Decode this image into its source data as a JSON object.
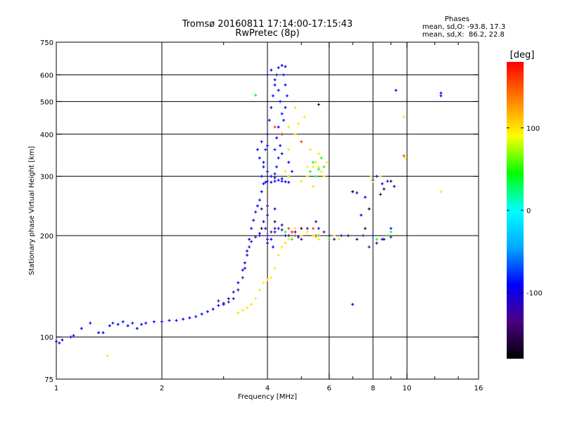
{
  "title": {
    "line1": "Tromsø 20160811 17:14:00-17:15:43",
    "line2": "RwPretec (8p)"
  },
  "stats": {
    "heading": "Phases",
    "o_line": "mean, sd,O: -93.8, 17.3",
    "x_line": "mean, sd,X:  86.2, 22.8"
  },
  "chart_data": {
    "type": "scatter",
    "xlabel": "Frequency [MHz]",
    "ylabel": "Stationary phase Virtual Height [km]",
    "x_scale": "log",
    "y_scale": "log",
    "xlim": [
      1,
      16
    ],
    "ylim": [
      75,
      750
    ],
    "x_ticks": [
      1,
      2,
      4,
      6,
      8,
      10,
      16
    ],
    "x_tick_labels": [
      "1",
      "2",
      "4",
      "6",
      "8",
      "10",
      "16"
    ],
    "x_minor_ticks": [
      3,
      5,
      7,
      9,
      12,
      14
    ],
    "x_grid": [
      2,
      4,
      6,
      8,
      10
    ],
    "y_ticks": [
      75,
      100,
      200,
      300,
      400,
      500,
      600,
      750
    ],
    "y_tick_labels": [
      "75",
      "100",
      "200",
      "300",
      "400",
      "500",
      "600",
      "750"
    ],
    "y_grid": [
      100,
      200,
      300,
      400,
      500,
      600
    ],
    "grid": true,
    "colorbar": {
      "label": "[deg]",
      "min": -180,
      "max": 180,
      "ticks": [
        100,
        0,
        -100
      ],
      "tick_labels": [
        "100",
        "0",
        "-100"
      ],
      "colors": [
        "#000000",
        "#4b0082",
        "#0000ff",
        "#00aaff",
        "#00ffff",
        "#00ff00",
        "#ffff00",
        "#ff8000",
        "#ff0000"
      ]
    },
    "series": [
      {
        "phase": -90,
        "points": [
          [
            1.0,
            97
          ],
          [
            1.02,
            96
          ],
          [
            1.04,
            98
          ],
          [
            1.1,
            100
          ],
          [
            1.12,
            101
          ],
          [
            1.18,
            106
          ],
          [
            1.25,
            110
          ],
          [
            1.32,
            103
          ],
          [
            1.36,
            103
          ],
          [
            1.42,
            108
          ],
          [
            1.45,
            110
          ],
          [
            1.5,
            109
          ],
          [
            1.55,
            111
          ],
          [
            1.6,
            108
          ],
          [
            1.65,
            110
          ],
          [
            1.7,
            106
          ],
          [
            1.75,
            109
          ],
          [
            1.8,
            110
          ],
          [
            1.9,
            111
          ],
          [
            2.0,
            111
          ],
          [
            2.1,
            112
          ],
          [
            2.2,
            112
          ],
          [
            2.3,
            113
          ],
          [
            2.4,
            114
          ],
          [
            2.5,
            115
          ],
          [
            2.6,
            117
          ],
          [
            2.7,
            119
          ],
          [
            2.8,
            121
          ],
          [
            2.9,
            124
          ],
          [
            3.0,
            125
          ],
          [
            3.1,
            130
          ],
          [
            3.2,
            136
          ],
          [
            3.3,
            145
          ],
          [
            3.4,
            158
          ],
          [
            3.45,
            166
          ],
          [
            3.5,
            180
          ],
          [
            3.55,
            195
          ],
          [
            3.6,
            210
          ],
          [
            3.65,
            222
          ],
          [
            3.7,
            235
          ],
          [
            3.75,
            245
          ],
          [
            3.8,
            255
          ],
          [
            3.85,
            270
          ],
          [
            3.9,
            285
          ],
          [
            3.95,
            288
          ],
          [
            4.0,
            290
          ],
          [
            4.1,
            288
          ],
          [
            4.2,
            290
          ],
          [
            4.3,
            292
          ],
          [
            4.4,
            290
          ],
          [
            4.5,
            289
          ],
          [
            4.6,
            288
          ],
          [
            3.85,
            300
          ],
          [
            3.9,
            330
          ],
          [
            3.95,
            360
          ],
          [
            4.0,
            400
          ],
          [
            4.05,
            440
          ],
          [
            4.1,
            480
          ],
          [
            4.15,
            520
          ],
          [
            4.2,
            560
          ],
          [
            4.25,
            600
          ],
          [
            4.3,
            630
          ],
          [
            4.4,
            640
          ],
          [
            4.5,
            635
          ],
          [
            4.45,
            600
          ],
          [
            4.5,
            560
          ],
          [
            4.55,
            520
          ],
          [
            4.5,
            480
          ],
          [
            4.45,
            440
          ],
          [
            4.4,
            400
          ],
          [
            4.35,
            370
          ],
          [
            4.3,
            340
          ],
          [
            4.25,
            320
          ],
          [
            4.2,
            305
          ],
          [
            4.1,
            300
          ],
          [
            4.0,
            310
          ],
          [
            3.9,
            320
          ],
          [
            3.8,
            340
          ],
          [
            3.75,
            360
          ],
          [
            3.85,
            380
          ],
          [
            4.0,
            370
          ],
          [
            4.2,
            360
          ],
          [
            4.4,
            350
          ],
          [
            4.6,
            330
          ],
          [
            4.7,
            310
          ],
          [
            4.6,
            300
          ],
          [
            4.4,
            295
          ],
          [
            4.2,
            297
          ],
          [
            4.0,
            600
          ],
          [
            4.1,
            620
          ],
          [
            4.2,
            580
          ],
          [
            4.3,
            540
          ],
          [
            4.35,
            500
          ],
          [
            4.4,
            460
          ],
          [
            4.3,
            420
          ],
          [
            4.25,
            390
          ],
          [
            4.0,
            200
          ],
          [
            4.1,
            195
          ],
          [
            4.2,
            205
          ],
          [
            4.3,
            210
          ],
          [
            4.5,
            200
          ],
          [
            4.7,
            205
          ],
          [
            4.9,
            198
          ],
          [
            4.0,
            230
          ],
          [
            4.2,
            240
          ],
          [
            7.0,
            270
          ],
          [
            7.2,
            268
          ],
          [
            7.6,
            260
          ],
          [
            8.0,
            292
          ],
          [
            8.2,
            300
          ],
          [
            8.5,
            285
          ],
          [
            8.8,
            290
          ],
          [
            9.2,
            280
          ],
          [
            7.4,
            230
          ],
          [
            7.0,
            125
          ],
          [
            6.5,
            200
          ],
          [
            8.0,
            200
          ],
          [
            8.5,
            195
          ],
          [
            9.0,
            210
          ],
          [
            12.5,
            530
          ],
          [
            12.5,
            520
          ],
          [
            9.3,
            540
          ],
          [
            3.8,
            200
          ],
          [
            3.9,
            220
          ],
          [
            3.95,
            210
          ],
          [
            4.0,
            190
          ],
          [
            4.15,
            185
          ]
        ]
      },
      {
        "phase": -130,
        "points": [
          [
            2.9,
            128
          ],
          [
            3.0,
            126
          ],
          [
            3.1,
            127
          ],
          [
            3.2,
            130
          ],
          [
            3.3,
            138
          ],
          [
            3.4,
            150
          ],
          [
            3.45,
            160
          ],
          [
            3.5,
            175
          ],
          [
            3.55,
            185
          ],
          [
            3.6,
            192
          ],
          [
            3.7,
            198
          ],
          [
            3.8,
            203
          ],
          [
            4.0,
            195
          ],
          [
            4.1,
            205
          ],
          [
            4.2,
            210
          ],
          [
            4.4,
            208
          ],
          [
            4.6,
            200
          ],
          [
            4.8,
            205
          ],
          [
            5.0,
            195
          ],
          [
            5.2,
            210
          ],
          [
            5.5,
            220
          ],
          [
            5.8,
            205
          ],
          [
            6.0,
            200
          ],
          [
            6.2,
            195
          ],
          [
            7.2,
            195
          ],
          [
            7.5,
            200
          ],
          [
            7.8,
            185
          ],
          [
            8.2,
            190
          ],
          [
            8.8,
            200
          ],
          [
            9.0,
            198
          ],
          [
            5.4,
            200
          ],
          [
            5.6,
            210
          ],
          [
            3.85,
            240
          ],
          [
            4.0,
            245
          ]
        ]
      },
      {
        "phase": 100,
        "points": [
          [
            3.3,
            118
          ],
          [
            3.4,
            120
          ],
          [
            3.5,
            122
          ],
          [
            3.6,
            125
          ],
          [
            3.7,
            130
          ],
          [
            3.8,
            138
          ],
          [
            3.9,
            145
          ],
          [
            4.0,
            148
          ],
          [
            4.1,
            150
          ],
          [
            4.2,
            160
          ],
          [
            4.3,
            175
          ],
          [
            4.4,
            185
          ],
          [
            4.5,
            190
          ],
          [
            4.6,
            195
          ],
          [
            4.7,
            205
          ],
          [
            4.8,
            210
          ],
          [
            5.0,
            200
          ],
          [
            5.2,
            205
          ],
          [
            5.4,
            200
          ],
          [
            5.5,
            198
          ],
          [
            5.6,
            195
          ],
          [
            5.0,
            290
          ],
          [
            5.2,
            300
          ],
          [
            5.4,
            320
          ],
          [
            5.5,
            330
          ],
          [
            5.6,
            320
          ],
          [
            5.7,
            310
          ],
          [
            5.8,
            300
          ],
          [
            5.9,
            330
          ],
          [
            5.6,
            350
          ],
          [
            5.3,
            360
          ],
          [
            5.0,
            380
          ],
          [
            4.8,
            400
          ],
          [
            4.6,
            360
          ],
          [
            4.9,
            430
          ],
          [
            5.1,
            450
          ],
          [
            4.8,
            480
          ],
          [
            4.6,
            420
          ],
          [
            5.2,
            320
          ],
          [
            5.4,
            280
          ],
          [
            6.2,
            200
          ],
          [
            6.4,
            195
          ],
          [
            7.9,
            300
          ],
          [
            8.0,
            290
          ],
          [
            8.4,
            300
          ],
          [
            9.8,
            450
          ],
          [
            9.9,
            340
          ],
          [
            12.5,
            270
          ],
          [
            1.4,
            88
          ],
          [
            4.6,
            300
          ],
          [
            4.5,
            310
          ]
        ]
      },
      {
        "phase": 40,
        "points": [
          [
            5.4,
            330
          ],
          [
            5.6,
            315
          ],
          [
            5.7,
            340
          ],
          [
            5.8,
            320
          ],
          [
            5.5,
            300
          ],
          [
            5.3,
            310
          ],
          [
            8.8,
            200
          ],
          [
            9.0,
            205
          ],
          [
            8.2,
            195
          ],
          [
            3.7,
            522
          ],
          [
            5.6,
            200
          ],
          [
            4.5,
            205
          ],
          [
            4.7,
            195
          ],
          [
            6.0,
            195
          ]
        ]
      },
      {
        "phase": -160,
        "points": [
          [
            5.6,
            490
          ],
          [
            7.0,
            270
          ],
          [
            8.6,
            275
          ],
          [
            8.4,
            265
          ],
          [
            7.8,
            240
          ],
          [
            9.0,
            290
          ],
          [
            4.2,
            220
          ],
          [
            4.4,
            215
          ],
          [
            3.85,
            210
          ],
          [
            5.0,
            210
          ],
          [
            6.8,
            200
          ],
          [
            7.6,
            210
          ],
          [
            8.6,
            195
          ]
        ]
      },
      {
        "phase": 160,
        "points": [
          [
            4.2,
            420
          ],
          [
            4.4,
            400
          ],
          [
            4.8,
            200
          ],
          [
            4.6,
            210
          ],
          [
            5.4,
            210
          ],
          [
            5.5,
            200
          ],
          [
            9.8,
            345
          ],
          [
            5.0,
            380
          ],
          [
            4.7,
            205
          ]
        ]
      }
    ]
  }
}
